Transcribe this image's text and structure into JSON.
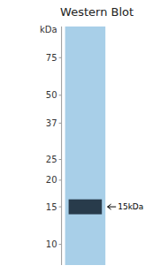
{
  "chart_data": {
    "type": "blot",
    "title": "Western Blot",
    "ylabel": "kDa",
    "log": "y",
    "ylim": [
      8,
      105
    ],
    "yticks": [
      10,
      15,
      20,
      25,
      37,
      50,
      75
    ],
    "color": "#a8cfe8",
    "series": [
      {
        "type": "band",
        "color": "#1a2a3a",
        "values": [
          15
        ]
      }
    ],
    "annotations": [
      {
        "text": "15kDa",
        "y": 15
      }
    ]
  }
}
